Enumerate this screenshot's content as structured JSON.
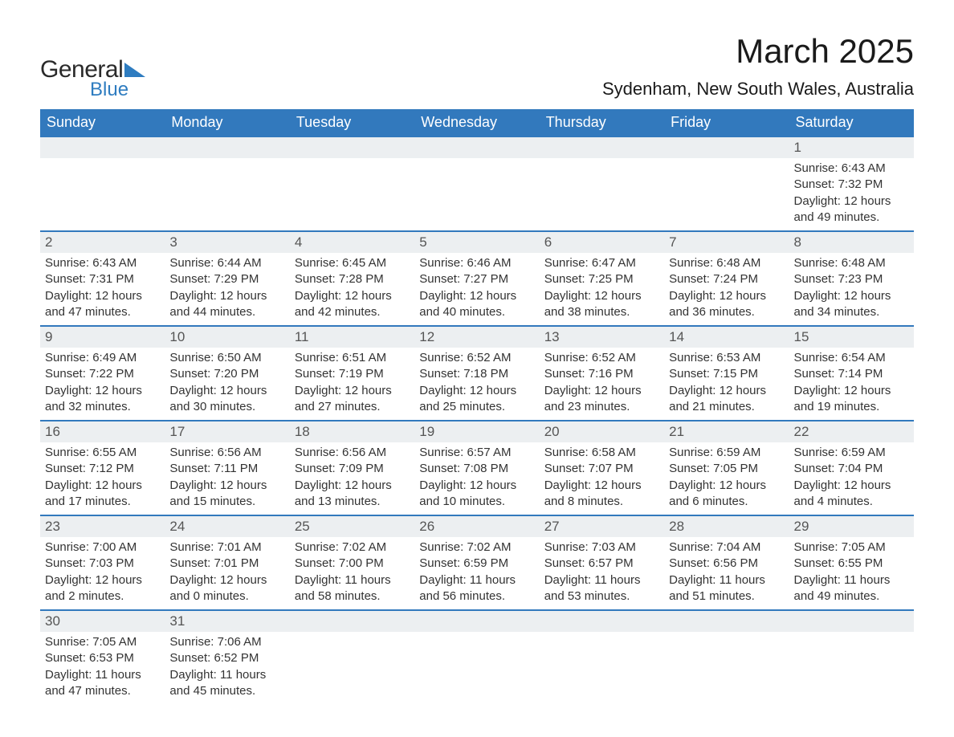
{
  "logo": {
    "text_general": "General",
    "text_blue": "Blue",
    "triangle_color": "#2e7cc0",
    "text_dark_color": "#2a2a2a"
  },
  "header": {
    "month_title": "March 2025",
    "location": "Sydenham, New South Wales, Australia"
  },
  "colors": {
    "header_bg": "#3279bd",
    "header_fg": "#ffffff",
    "daynum_bg": "#eceff1",
    "daynum_fg": "#555555",
    "body_text": "#333333",
    "row_divider": "#3279bd",
    "page_bg": "#ffffff"
  },
  "typography": {
    "month_title_fontsize": 42,
    "location_fontsize": 22,
    "weekday_fontsize": 18,
    "daynum_fontsize": 17,
    "body_fontsize": 15
  },
  "layout": {
    "columns": 7,
    "rows": 6,
    "col_width_pct": 14.28
  },
  "weekdays": [
    "Sunday",
    "Monday",
    "Tuesday",
    "Wednesday",
    "Thursday",
    "Friday",
    "Saturday"
  ],
  "weeks": [
    [
      {
        "blank": true
      },
      {
        "blank": true
      },
      {
        "blank": true
      },
      {
        "blank": true
      },
      {
        "blank": true
      },
      {
        "blank": true
      },
      {
        "day": "1",
        "sunrise": "Sunrise: 6:43 AM",
        "sunset": "Sunset: 7:32 PM",
        "daylight1": "Daylight: 12 hours",
        "daylight2": "and 49 minutes."
      }
    ],
    [
      {
        "day": "2",
        "sunrise": "Sunrise: 6:43 AM",
        "sunset": "Sunset: 7:31 PM",
        "daylight1": "Daylight: 12 hours",
        "daylight2": "and 47 minutes."
      },
      {
        "day": "3",
        "sunrise": "Sunrise: 6:44 AM",
        "sunset": "Sunset: 7:29 PM",
        "daylight1": "Daylight: 12 hours",
        "daylight2": "and 44 minutes."
      },
      {
        "day": "4",
        "sunrise": "Sunrise: 6:45 AM",
        "sunset": "Sunset: 7:28 PM",
        "daylight1": "Daylight: 12 hours",
        "daylight2": "and 42 minutes."
      },
      {
        "day": "5",
        "sunrise": "Sunrise: 6:46 AM",
        "sunset": "Sunset: 7:27 PM",
        "daylight1": "Daylight: 12 hours",
        "daylight2": "and 40 minutes."
      },
      {
        "day": "6",
        "sunrise": "Sunrise: 6:47 AM",
        "sunset": "Sunset: 7:25 PM",
        "daylight1": "Daylight: 12 hours",
        "daylight2": "and 38 minutes."
      },
      {
        "day": "7",
        "sunrise": "Sunrise: 6:48 AM",
        "sunset": "Sunset: 7:24 PM",
        "daylight1": "Daylight: 12 hours",
        "daylight2": "and 36 minutes."
      },
      {
        "day": "8",
        "sunrise": "Sunrise: 6:48 AM",
        "sunset": "Sunset: 7:23 PM",
        "daylight1": "Daylight: 12 hours",
        "daylight2": "and 34 minutes."
      }
    ],
    [
      {
        "day": "9",
        "sunrise": "Sunrise: 6:49 AM",
        "sunset": "Sunset: 7:22 PM",
        "daylight1": "Daylight: 12 hours",
        "daylight2": "and 32 minutes."
      },
      {
        "day": "10",
        "sunrise": "Sunrise: 6:50 AM",
        "sunset": "Sunset: 7:20 PM",
        "daylight1": "Daylight: 12 hours",
        "daylight2": "and 30 minutes."
      },
      {
        "day": "11",
        "sunrise": "Sunrise: 6:51 AM",
        "sunset": "Sunset: 7:19 PM",
        "daylight1": "Daylight: 12 hours",
        "daylight2": "and 27 minutes."
      },
      {
        "day": "12",
        "sunrise": "Sunrise: 6:52 AM",
        "sunset": "Sunset: 7:18 PM",
        "daylight1": "Daylight: 12 hours",
        "daylight2": "and 25 minutes."
      },
      {
        "day": "13",
        "sunrise": "Sunrise: 6:52 AM",
        "sunset": "Sunset: 7:16 PM",
        "daylight1": "Daylight: 12 hours",
        "daylight2": "and 23 minutes."
      },
      {
        "day": "14",
        "sunrise": "Sunrise: 6:53 AM",
        "sunset": "Sunset: 7:15 PM",
        "daylight1": "Daylight: 12 hours",
        "daylight2": "and 21 minutes."
      },
      {
        "day": "15",
        "sunrise": "Sunrise: 6:54 AM",
        "sunset": "Sunset: 7:14 PM",
        "daylight1": "Daylight: 12 hours",
        "daylight2": "and 19 minutes."
      }
    ],
    [
      {
        "day": "16",
        "sunrise": "Sunrise: 6:55 AM",
        "sunset": "Sunset: 7:12 PM",
        "daylight1": "Daylight: 12 hours",
        "daylight2": "and 17 minutes."
      },
      {
        "day": "17",
        "sunrise": "Sunrise: 6:56 AM",
        "sunset": "Sunset: 7:11 PM",
        "daylight1": "Daylight: 12 hours",
        "daylight2": "and 15 minutes."
      },
      {
        "day": "18",
        "sunrise": "Sunrise: 6:56 AM",
        "sunset": "Sunset: 7:09 PM",
        "daylight1": "Daylight: 12 hours",
        "daylight2": "and 13 minutes."
      },
      {
        "day": "19",
        "sunrise": "Sunrise: 6:57 AM",
        "sunset": "Sunset: 7:08 PM",
        "daylight1": "Daylight: 12 hours",
        "daylight2": "and 10 minutes."
      },
      {
        "day": "20",
        "sunrise": "Sunrise: 6:58 AM",
        "sunset": "Sunset: 7:07 PM",
        "daylight1": "Daylight: 12 hours",
        "daylight2": "and 8 minutes."
      },
      {
        "day": "21",
        "sunrise": "Sunrise: 6:59 AM",
        "sunset": "Sunset: 7:05 PM",
        "daylight1": "Daylight: 12 hours",
        "daylight2": "and 6 minutes."
      },
      {
        "day": "22",
        "sunrise": "Sunrise: 6:59 AM",
        "sunset": "Sunset: 7:04 PM",
        "daylight1": "Daylight: 12 hours",
        "daylight2": "and 4 minutes."
      }
    ],
    [
      {
        "day": "23",
        "sunrise": "Sunrise: 7:00 AM",
        "sunset": "Sunset: 7:03 PM",
        "daylight1": "Daylight: 12 hours",
        "daylight2": "and 2 minutes."
      },
      {
        "day": "24",
        "sunrise": "Sunrise: 7:01 AM",
        "sunset": "Sunset: 7:01 PM",
        "daylight1": "Daylight: 12 hours",
        "daylight2": "and 0 minutes."
      },
      {
        "day": "25",
        "sunrise": "Sunrise: 7:02 AM",
        "sunset": "Sunset: 7:00 PM",
        "daylight1": "Daylight: 11 hours",
        "daylight2": "and 58 minutes."
      },
      {
        "day": "26",
        "sunrise": "Sunrise: 7:02 AM",
        "sunset": "Sunset: 6:59 PM",
        "daylight1": "Daylight: 11 hours",
        "daylight2": "and 56 minutes."
      },
      {
        "day": "27",
        "sunrise": "Sunrise: 7:03 AM",
        "sunset": "Sunset: 6:57 PM",
        "daylight1": "Daylight: 11 hours",
        "daylight2": "and 53 minutes."
      },
      {
        "day": "28",
        "sunrise": "Sunrise: 7:04 AM",
        "sunset": "Sunset: 6:56 PM",
        "daylight1": "Daylight: 11 hours",
        "daylight2": "and 51 minutes."
      },
      {
        "day": "29",
        "sunrise": "Sunrise: 7:05 AM",
        "sunset": "Sunset: 6:55 PM",
        "daylight1": "Daylight: 11 hours",
        "daylight2": "and 49 minutes."
      }
    ],
    [
      {
        "day": "30",
        "sunrise": "Sunrise: 7:05 AM",
        "sunset": "Sunset: 6:53 PM",
        "daylight1": "Daylight: 11 hours",
        "daylight2": "and 47 minutes."
      },
      {
        "day": "31",
        "sunrise": "Sunrise: 7:06 AM",
        "sunset": "Sunset: 6:52 PM",
        "daylight1": "Daylight: 11 hours",
        "daylight2": "and 45 minutes."
      },
      {
        "blank": true
      },
      {
        "blank": true
      },
      {
        "blank": true
      },
      {
        "blank": true
      },
      {
        "blank": true
      }
    ]
  ]
}
